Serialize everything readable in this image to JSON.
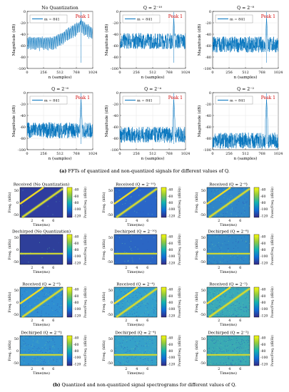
{
  "fft_panels": [
    {
      "title": "No Quantization",
      "peak": "Peak 1",
      "legend": "m = 841"
    },
    {
      "title": "Q = 2⁻¹⁰",
      "peak": "Peak 1",
      "legend": "m = 841"
    },
    {
      "title": "Q = 2⁻⁸",
      "peak": "Peak 1",
      "legend": "m = 841"
    },
    {
      "title": "Q = 2⁻⁶",
      "peak": "Peak 1",
      "legend": "m = 841"
    },
    {
      "title": "Q = 2⁻⁴",
      "peak": "Peak 1",
      "legend": "m = 841"
    },
    {
      "title": "Q = 2⁻²",
      "peak": "Peak 1",
      "legend": "m = 841"
    }
  ],
  "fft_axes": {
    "ylabel": "Magnitude (dB)",
    "xlabel": "n (samples)",
    "yticks": [
      "0",
      "-20",
      "-40",
      "-60",
      "-80",
      "-100"
    ],
    "xticks": [
      "0",
      "256",
      "512",
      "768",
      "1024"
    ]
  },
  "caption_a": {
    "label": "(a)",
    "text": "FFTs of quantized and non-quantized signals for different values of Q."
  },
  "spec_panels": [
    {
      "title": "Received (No Quantization)",
      "kind": "received"
    },
    {
      "title": "Received (Q = 2⁻¹⁰)",
      "kind": "received"
    },
    {
      "title": "Received (Q = 2⁻⁸)",
      "kind": "received"
    },
    {
      "title": "Dechirped (No Quantization)",
      "kind": "dechirped"
    },
    {
      "title": "Dechirped (Q = 2⁻¹⁰)",
      "kind": "dechirped"
    },
    {
      "title": "Dechirped (Q = 2⁻⁸)",
      "kind": "dechirped"
    },
    {
      "title": "Received (Q = 2⁻⁶)",
      "kind": "received"
    },
    {
      "title": "Received (Q = 2⁻⁴)",
      "kind": "received"
    },
    {
      "title": "Received (Q = 2⁻²)",
      "kind": "received"
    },
    {
      "title": "Dechirped (Q = 2⁻⁶)",
      "kind": "dechirped"
    },
    {
      "title": "Dechirped (Q = 2⁻⁴)",
      "kind": "dechirped"
    },
    {
      "title": "Dechirped (Q = 2⁻²)",
      "kind": "dechirped"
    }
  ],
  "spec_axes": {
    "ylabel": "Freq. (kHz)",
    "xlabel": "Time(ms)",
    "yticks": [
      "50",
      "0",
      "-50"
    ],
    "xticks": [
      "2",
      "4",
      "6"
    ],
    "cbar_label": "Power/Freq. (dB/Hz)",
    "cbar_ticks": [
      "-40",
      "-60",
      "-80",
      "-100",
      "-120"
    ]
  },
  "caption_b": {
    "label": "(b)",
    "text": "Quantized and non-quantized signal spectrograms for different values of Q."
  },
  "colors": {
    "trace": "#0072bd",
    "peak_label": "#d00000",
    "parula_low": "#352a87",
    "parula_high": "#f9fb0e"
  }
}
